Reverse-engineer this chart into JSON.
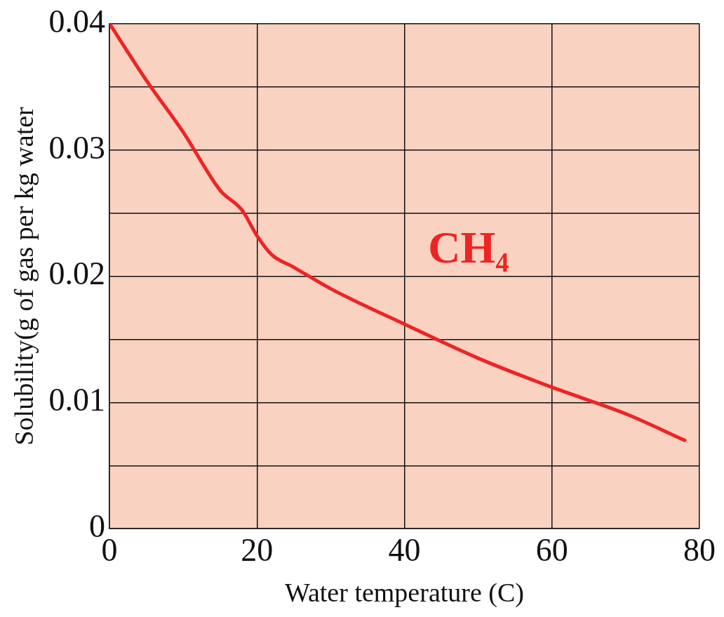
{
  "chart_data": {
    "type": "line",
    "xlabel": "Water temperature (C)",
    "ylabel": "Solubility(g of gas per kg water",
    "series": [
      {
        "name": "CH₄",
        "color": "#ee2424",
        "x": [
          0,
          5,
          10,
          15,
          18,
          20,
          22,
          25,
          30,
          40,
          50,
          60,
          70,
          78
        ],
        "values": [
          0.04,
          0.0355,
          0.0314,
          0.0268,
          0.0252,
          0.0232,
          0.0217,
          0.0207,
          0.019,
          0.0162,
          0.0135,
          0.0112,
          0.0091,
          0.007
        ]
      }
    ],
    "xlim": [
      0,
      80
    ],
    "xticks": [
      0,
      20,
      40,
      60,
      80
    ],
    "ylim": [
      0,
      0.04
    ],
    "yticks": [
      0,
      {
        "value": 0.005,
        "label": null
      },
      0.01,
      {
        "value": 0.015,
        "label": null
      },
      0.02,
      {
        "value": 0.025,
        "label": null
      },
      0.03,
      {
        "value": 0.035,
        "label": null
      },
      0.04
    ],
    "grid": true,
    "legend": false,
    "marker": "none",
    "line_style": "solid"
  }
}
